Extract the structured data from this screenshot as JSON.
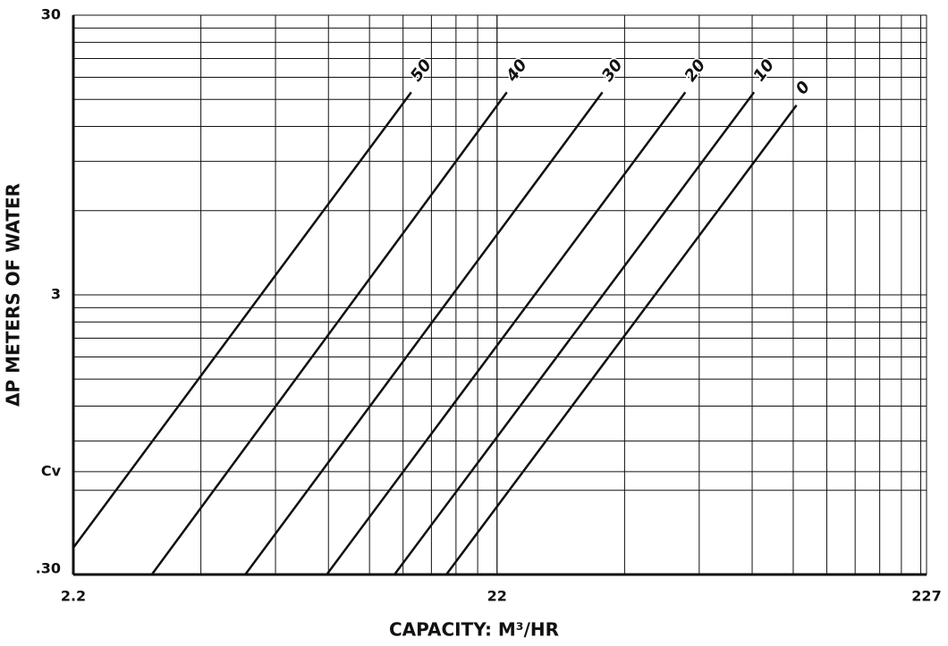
{
  "chart_data": {
    "type": "line",
    "xlabel": "CAPACITY: M³/HR",
    "ylabel": "ΔP METERS OF WATER",
    "xscale": "log",
    "yscale": "log",
    "xlim": [
      2.2,
      227
    ],
    "ylim": [
      0.3,
      30
    ],
    "xticks": [
      2.2,
      22,
      227
    ],
    "yticks": [
      {
        "value": 0.3,
        "label": ".30"
      },
      {
        "value": 0.7,
        "label": "Cv"
      },
      3,
      30
    ],
    "grid": true,
    "series": [
      {
        "name": "50",
        "color": "#111111",
        "x": [
          2.2,
          13.8
        ],
        "values": [
          0.374,
          15.9
        ]
      },
      {
        "name": "40",
        "color": "#111111",
        "x": [
          3.37,
          23.2
        ],
        "values": [
          0.3,
          15.9
        ]
      },
      {
        "name": "30",
        "color": "#111111",
        "x": [
          5.6,
          39.0
        ],
        "values": [
          0.3,
          15.9
        ]
      },
      {
        "name": "20",
        "color": "#111111",
        "x": [
          8.72,
          61.2
        ],
        "values": [
          0.3,
          15.9
        ]
      },
      {
        "name": "10",
        "color": "#111111",
        "x": [
          12.6,
          88.9
        ],
        "values": [
          0.3,
          15.9
        ]
      },
      {
        "name": "0",
        "color": "#111111",
        "x": [
          16.7,
          112
        ],
        "values": [
          0.3,
          14.3
        ]
      }
    ]
  }
}
